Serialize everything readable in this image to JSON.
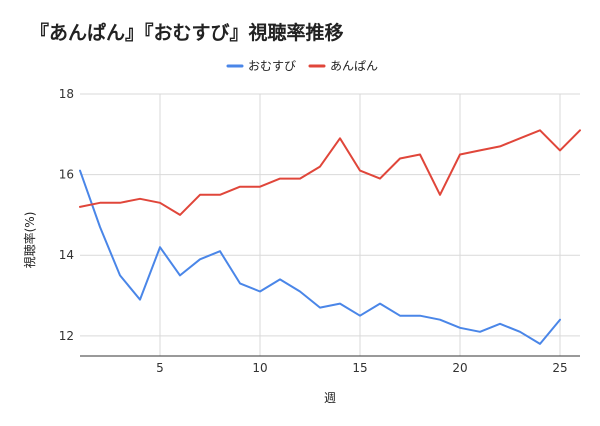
{
  "chart_data": {
    "type": "line",
    "title": "『あんぱん』『おむすび』視聴率推移",
    "xlabel": "週",
    "ylabel": "視聴率(%)",
    "xlim": [
      1,
      26
    ],
    "ylim": [
      11.5,
      18
    ],
    "x_ticks": [
      5,
      10,
      15,
      20,
      25
    ],
    "y_ticks": [
      12,
      14,
      16,
      18
    ],
    "grid": true,
    "legend_position": "top",
    "series": [
      {
        "name": "おむすび",
        "color": "#4a86e8",
        "x": [
          1,
          2,
          3,
          4,
          5,
          6,
          7,
          8,
          9,
          10,
          11,
          12,
          13,
          14,
          15,
          16,
          17,
          18,
          19,
          20,
          21,
          22,
          23,
          24,
          25
        ],
        "values": [
          16.1,
          14.7,
          13.5,
          12.9,
          14.2,
          13.5,
          13.9,
          14.1,
          13.3,
          13.1,
          13.4,
          13.1,
          12.7,
          12.8,
          12.5,
          12.8,
          12.5,
          12.5,
          12.4,
          12.2,
          12.1,
          12.3,
          12.1,
          11.8,
          12.4
        ]
      },
      {
        "name": "あんぱん",
        "color": "#e0463a",
        "x": [
          1,
          2,
          3,
          4,
          5,
          6,
          7,
          8,
          9,
          10,
          11,
          12,
          13,
          14,
          15,
          16,
          17,
          18,
          19,
          20,
          21,
          22,
          23,
          24,
          25,
          26
        ],
        "values": [
          15.2,
          15.3,
          15.3,
          15.4,
          15.3,
          15.0,
          15.5,
          15.5,
          15.7,
          15.7,
          15.9,
          15.9,
          16.2,
          16.9,
          16.1,
          15.9,
          16.4,
          16.5,
          15.5,
          16.5,
          16.6,
          16.7,
          16.9,
          17.1,
          16.6,
          17.1
        ]
      }
    ]
  }
}
